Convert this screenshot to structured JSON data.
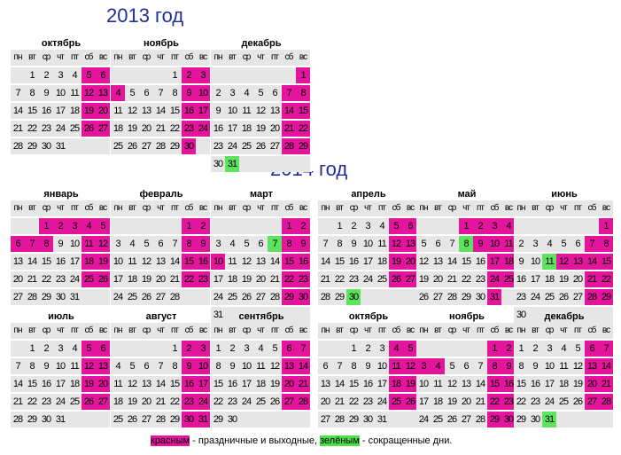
{
  "headers": [
    "пн",
    "вт",
    "ср",
    "чт",
    "пт",
    "сб",
    "вс"
  ],
  "colors": {
    "holiday": "#e3159d",
    "short": "#5ee35e",
    "cell": "#e6e6e6",
    "year": "#1f2f9a"
  },
  "years": [
    {
      "title": "2013 год",
      "months": [
        {
          "name": "октябрь",
          "startDow": 1,
          "days": 31,
          "red": [
            5,
            6,
            12,
            13,
            19,
            20,
            26,
            27
          ],
          "green": []
        },
        {
          "name": "ноябрь",
          "startDow": 4,
          "days": 30,
          "red": [
            2,
            3,
            4,
            9,
            10,
            16,
            17,
            23,
            24,
            30
          ],
          "green": []
        },
        {
          "name": "декабрь",
          "startDow": 6,
          "days": 31,
          "red": [
            1,
            7,
            8,
            14,
            15,
            21,
            22,
            28,
            29
          ],
          "green": [
            31
          ]
        }
      ]
    },
    {
      "title": "2014 год",
      "months": [
        {
          "name": "январь",
          "startDow": 2,
          "days": 31,
          "red": [
            1,
            2,
            3,
            4,
            5,
            6,
            7,
            8,
            11,
            12,
            18,
            19,
            25,
            26
          ],
          "green": []
        },
        {
          "name": "февраль",
          "startDow": 5,
          "days": 28,
          "red": [
            1,
            2,
            8,
            9,
            15,
            16,
            22,
            23
          ],
          "green": []
        },
        {
          "name": "март",
          "startDow": 5,
          "days": 31,
          "red": [
            1,
            2,
            8,
            9,
            10,
            15,
            16,
            22,
            23,
            29,
            30
          ],
          "green": [
            7
          ]
        },
        {
          "name": "апрель",
          "startDow": 1,
          "days": 30,
          "red": [
            5,
            6,
            12,
            13,
            19,
            20,
            26,
            27
          ],
          "green": [
            30
          ]
        },
        {
          "name": "май",
          "startDow": 3,
          "days": 31,
          "red": [
            1,
            2,
            3,
            4,
            9,
            10,
            11,
            17,
            18,
            24,
            25,
            31
          ],
          "green": [
            8
          ]
        },
        {
          "name": "июнь",
          "startDow": 6,
          "days": 30,
          "red": [
            1,
            7,
            8,
            12,
            13,
            14,
            15,
            21,
            22,
            28,
            29
          ],
          "green": [
            11
          ]
        },
        {
          "name": "июль",
          "startDow": 1,
          "days": 31,
          "red": [
            5,
            6,
            12,
            13,
            19,
            20,
            26,
            27
          ],
          "green": []
        },
        {
          "name": "август",
          "startDow": 4,
          "days": 31,
          "red": [
            2,
            3,
            9,
            10,
            16,
            17,
            23,
            24,
            30,
            31
          ],
          "green": []
        },
        {
          "name": "сентябрь",
          "startDow": 0,
          "days": 30,
          "red": [
            6,
            7,
            13,
            14,
            20,
            21,
            27,
            28
          ],
          "green": []
        },
        {
          "name": "октябрь",
          "startDow": 2,
          "days": 31,
          "red": [
            4,
            5,
            11,
            12,
            18,
            19,
            25,
            26
          ],
          "green": []
        },
        {
          "name": "ноябрь",
          "startDow": 5,
          "days": 30,
          "red": [
            1,
            2,
            3,
            4,
            8,
            9,
            15,
            16,
            22,
            23,
            29,
            30
          ],
          "green": []
        },
        {
          "name": "декабрь",
          "startDow": 0,
          "days": 31,
          "red": [
            6,
            7,
            13,
            14,
            20,
            21,
            27,
            28
          ],
          "green": [
            31
          ]
        }
      ]
    }
  ],
  "legend": {
    "red_word": "красным",
    "red_text": " - праздничные и выходные, ",
    "green_word": "зелёным",
    "green_text": " - сокращенные дни."
  }
}
